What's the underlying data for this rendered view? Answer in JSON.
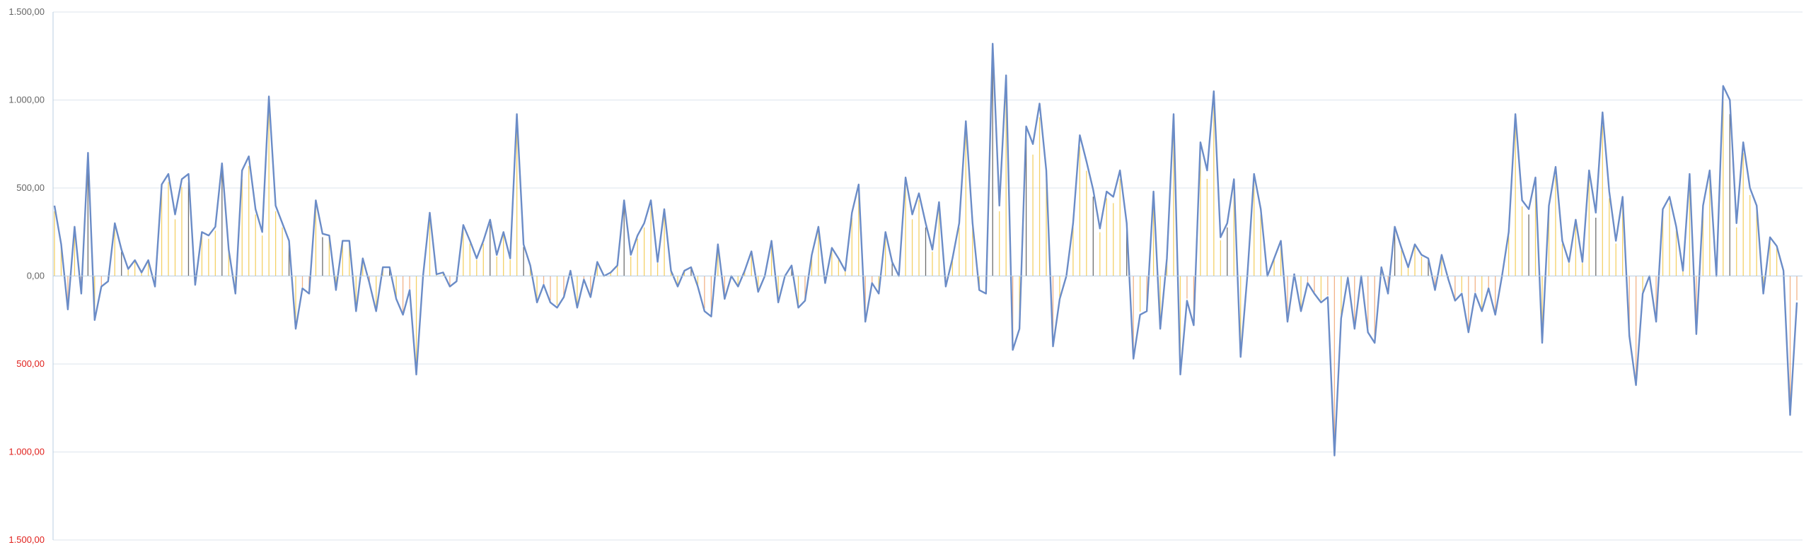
{
  "chart_data": {
    "type": "bar",
    "title": "",
    "xlabel": "",
    "ylabel": "",
    "ylim": [
      -1500,
      1500
    ],
    "y_ticks": [
      {
        "value": 1500,
        "label": "1.500,00",
        "negative": false
      },
      {
        "value": 1000,
        "label": "1.000,00",
        "negative": false
      },
      {
        "value": 500,
        "label": "500,00",
        "negative": false
      },
      {
        "value": 0,
        "label": "0,00",
        "negative": false
      },
      {
        "value": -500,
        "label": "500,00",
        "negative": true
      },
      {
        "value": -1000,
        "label": "1.000,00",
        "negative": true
      },
      {
        "value": -1500,
        "label": "1.500,00",
        "negative": true
      }
    ],
    "grid": true,
    "legend": "none",
    "x_count": 600,
    "colors": {
      "line": "#6b8cc7",
      "bar_yellow": "#f2c94c",
      "bar_orange": "#f0a673",
      "bar_dark": "#555555",
      "grid": "#dde5ee",
      "axis": "#b8cde0",
      "tick_text": "#666666",
      "negative_tick_text": "#e0201c"
    },
    "series": [
      {
        "kind": "line",
        "values": [
          400,
          180,
          -190,
          280,
          -100,
          700,
          -250,
          -60,
          -30,
          300,
          150,
          40,
          90,
          20,
          90,
          -60,
          520,
          580,
          350,
          550,
          580,
          -50,
          250,
          230,
          280,
          640,
          150,
          -100,
          600,
          680,
          380,
          250,
          1020,
          400,
          300,
          200,
          -300,
          -70,
          -100,
          430,
          240,
          230,
          -80,
          200,
          200,
          -200,
          100,
          -40,
          -200,
          50,
          50,
          -130,
          -220,
          -80,
          -560,
          0,
          360,
          10,
          20,
          -60,
          -30,
          290,
          200,
          100,
          200,
          320,
          120,
          250,
          100,
          920,
          180,
          60,
          -150,
          -50,
          -150,
          -180,
          -120,
          30,
          -180,
          -20,
          -120,
          80,
          0,
          20,
          60,
          430,
          120,
          230,
          300,
          430,
          80,
          380,
          30,
          -60,
          30,
          50,
          -60,
          -200,
          -230,
          180,
          -130,
          0,
          -60,
          30,
          140,
          -90,
          0,
          200,
          -150,
          0,
          60,
          -180,
          -140,
          120,
          280,
          -40,
          160,
          100,
          30,
          360,
          520,
          -260,
          -40,
          -100,
          250,
          80,
          0,
          560,
          350,
          470,
          300,
          150,
          420,
          -60,
          100,
          300,
          880,
          300,
          -80,
          -100,
          1320,
          400,
          1140,
          -420,
          -300,
          850,
          750,
          980,
          600,
          -400,
          -130,
          0,
          300,
          800,
          650,
          490,
          270,
          480,
          450,
          600,
          300,
          -470,
          -220,
          -200,
          480,
          -300,
          100,
          920,
          -560,
          -140,
          -280,
          760,
          600,
          1050,
          220,
          300,
          550,
          -460,
          0,
          580,
          380,
          0,
          100,
          200,
          -260,
          10,
          -200,
          -40,
          -100,
          -150,
          -120,
          -1020,
          -240,
          -10,
          -300,
          0,
          -320,
          -380,
          50,
          -100,
          280,
          160,
          50,
          180,
          120,
          100,
          -80,
          120,
          -20,
          -140,
          -100,
          -320,
          -100,
          -200,
          -70,
          -220,
          0,
          250,
          920,
          430,
          380,
          560,
          -380,
          400,
          620,
          200,
          80,
          320,
          80,
          600,
          360,
          930,
          480,
          200,
          450,
          -340,
          -620,
          -100,
          0,
          -260,
          380,
          450,
          280,
          30,
          580,
          -330,
          400,
          600,
          0,
          1080,
          1000,
          300,
          760,
          500,
          400,
          -100,
          220,
          170,
          30,
          -790,
          -150
        ],
        "x_step": 2.34
      }
    ]
  }
}
